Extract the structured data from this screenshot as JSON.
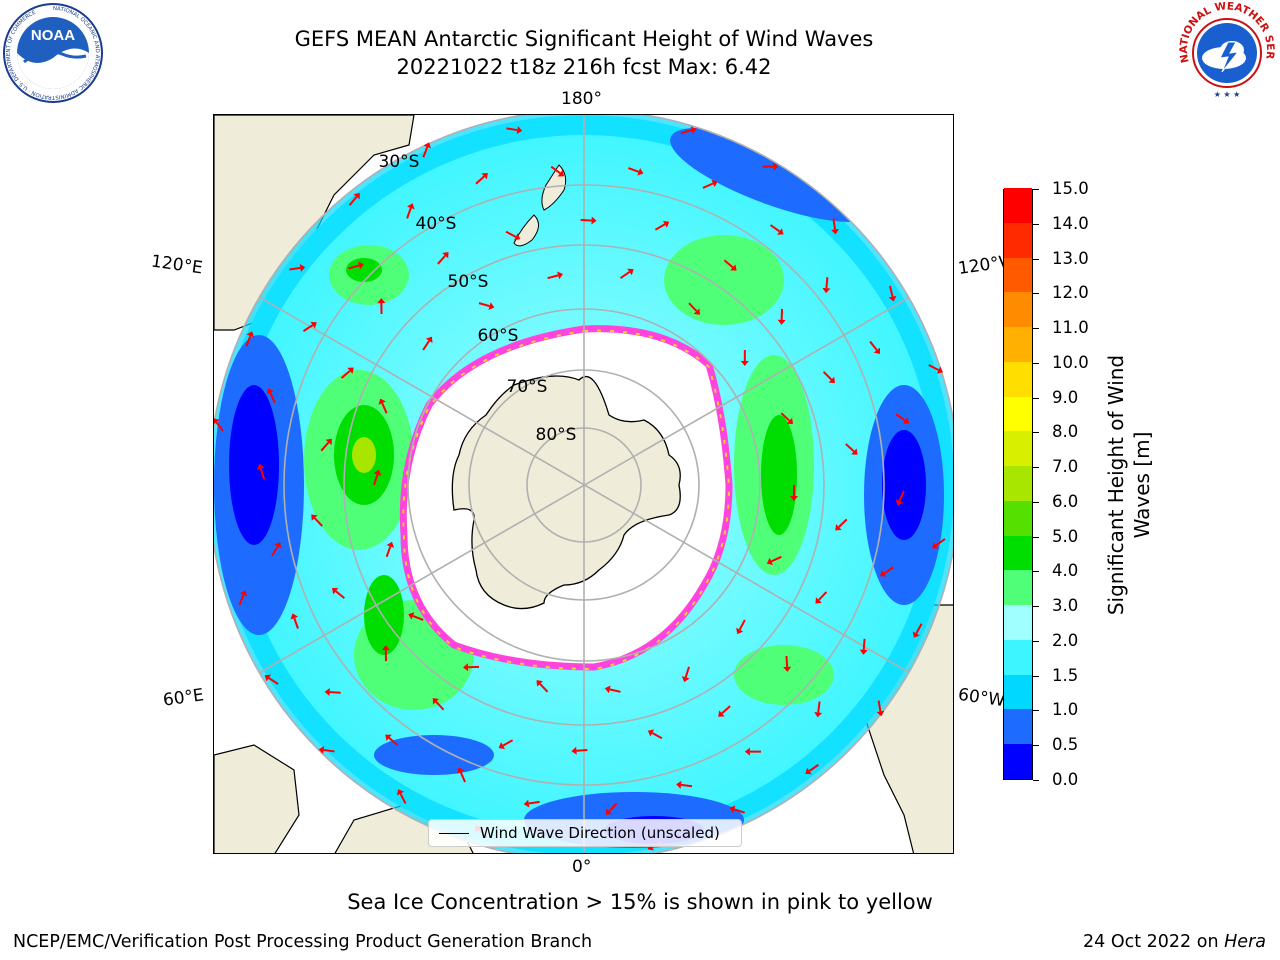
{
  "header": {
    "title_line1": "GEFS MEAN Antarctic Significant Height of Wind Waves",
    "title_line2": "20221022 t18z 216h fcst   Max: 6.42"
  },
  "logos": {
    "left": {
      "name": "noaa-logo",
      "text": "NOAA",
      "ring_text": "NATIONAL OCEANIC AND ATMOSPHERIC ADMINISTRATION · U.S. DEPARTMENT OF COMMERCE"
    },
    "right": {
      "name": "nws-logo",
      "ring_text": "NATIONAL WEATHER SERVICE"
    }
  },
  "map": {
    "projection": "south-polar-stereographic",
    "lon_labels": {
      "top": "180°",
      "bottom": "0°",
      "upper_left": "120°E",
      "lower_left": "60°E",
      "upper_right": "120°W",
      "lower_right": "60°W"
    },
    "lat_labels": [
      "30°S",
      "40°S",
      "50°S",
      "60°S",
      "70°S",
      "80°S"
    ],
    "colors": {
      "land": "#efedd9",
      "ice": "#ffffff",
      "ice_edge": "#ff44dd",
      "ice_edge_yellow": "#ffcc33",
      "arrow": "#ff0000",
      "grid": "#b0b0b0"
    }
  },
  "legend": {
    "label": "Wind Wave Direction (unscaled)"
  },
  "colorbar": {
    "title": "Significant Height of Wind Waves [m]",
    "ticks": [
      "15.0",
      "14.0",
      "13.0",
      "12.0",
      "11.0",
      "10.0",
      "9.0",
      "8.0",
      "7.0",
      "6.0",
      "5.0",
      "4.0",
      "3.0",
      "2.0",
      "1.5",
      "1.0",
      "0.5",
      "0.0"
    ],
    "levels": [
      0,
      0.5,
      1.0,
      1.5,
      2.0,
      3.0,
      4.0,
      5.0,
      6.0,
      7.0,
      8.0,
      9.0,
      10.0,
      11.0,
      12.0,
      13.0,
      14.0,
      15.0
    ],
    "colors": [
      "#0000ff",
      "#1e6cff",
      "#00d8ff",
      "#3cf5ff",
      "#a0ffff",
      "#50ff78",
      "#00dd00",
      "#55e000",
      "#a8e600",
      "#d8f000",
      "#ffff00",
      "#ffde00",
      "#ffb000",
      "#ff8c00",
      "#ff5a00",
      "#ff2a00",
      "#ff0000"
    ]
  },
  "footer": {
    "note": "Sea Ice Concentration > 15% is shown in pink to yellow",
    "left": "NCEP/EMC/Verification Post Processing Product Generation Branch",
    "right_date": "24 Oct 2022 on",
    "right_host": "Hera"
  }
}
